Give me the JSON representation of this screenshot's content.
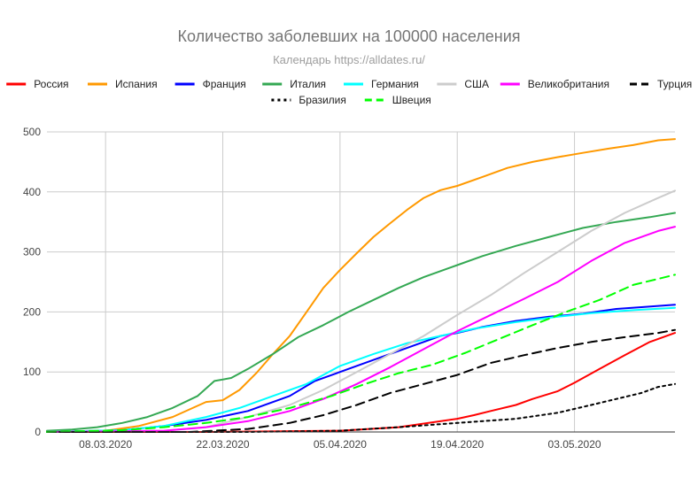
{
  "chart_data": {
    "type": "line",
    "title": "Количество заболевших на 100000 населения",
    "subtitle": "Календарь https://alldates.ru/",
    "xlabel": "",
    "ylabel": "",
    "x_start": "2020-03-01",
    "x_end": "2020-05-15",
    "x_ticks": [
      {
        "date": "2020-03-08",
        "label": "08.03.2020"
      },
      {
        "date": "2020-03-22",
        "label": "22.03.2020"
      },
      {
        "date": "2020-04-05",
        "label": "05.04.2020"
      },
      {
        "date": "2020-04-19",
        "label": "19.04.2020"
      },
      {
        "date": "2020-05-03",
        "label": "03.05.2020"
      }
    ],
    "ylim": [
      0,
      500
    ],
    "y_ticks": [
      0,
      100,
      200,
      300,
      400,
      500
    ],
    "grid": true,
    "legend_position": "top",
    "series": [
      {
        "name": "Россия",
        "color": "#ff0000",
        "dash": "solid",
        "points": [
          [
            "2020-03-01",
            0
          ],
          [
            "2020-03-20",
            0
          ],
          [
            "2020-04-05",
            2
          ],
          [
            "2020-04-12",
            8
          ],
          [
            "2020-04-19",
            22
          ],
          [
            "2020-04-21",
            28
          ],
          [
            "2020-04-23",
            35
          ],
          [
            "2020-04-26",
            45
          ],
          [
            "2020-04-28",
            55
          ],
          [
            "2020-05-01",
            68
          ],
          [
            "2020-05-03",
            82
          ],
          [
            "2020-05-06",
            105
          ],
          [
            "2020-05-09",
            128
          ],
          [
            "2020-05-12",
            150
          ],
          [
            "2020-05-15",
            165
          ]
        ]
      },
      {
        "name": "Испания",
        "color": "#ff9900",
        "dash": "solid",
        "points": [
          [
            "2020-03-01",
            0
          ],
          [
            "2020-03-08",
            2
          ],
          [
            "2020-03-12",
            10
          ],
          [
            "2020-03-16",
            25
          ],
          [
            "2020-03-20",
            50
          ],
          [
            "2020-03-22",
            53
          ],
          [
            "2020-03-24",
            70
          ],
          [
            "2020-03-26",
            98
          ],
          [
            "2020-03-28",
            130
          ],
          [
            "2020-03-30",
            160
          ],
          [
            "2020-04-01",
            200
          ],
          [
            "2020-04-03",
            240
          ],
          [
            "2020-04-05",
            270
          ],
          [
            "2020-04-07",
            298
          ],
          [
            "2020-04-09",
            325
          ],
          [
            "2020-04-11",
            348
          ],
          [
            "2020-04-13",
            370
          ],
          [
            "2020-04-15",
            390
          ],
          [
            "2020-04-17",
            403
          ],
          [
            "2020-04-19",
            410
          ],
          [
            "2020-04-22",
            425
          ],
          [
            "2020-04-25",
            440
          ],
          [
            "2020-04-28",
            450
          ],
          [
            "2020-05-01",
            458
          ],
          [
            "2020-05-04",
            465
          ],
          [
            "2020-05-07",
            472
          ],
          [
            "2020-05-10",
            478
          ],
          [
            "2020-05-13",
            486
          ],
          [
            "2020-05-15",
            488
          ]
        ]
      },
      {
        "name": "Франция",
        "color": "#0000ff",
        "dash": "solid",
        "points": [
          [
            "2020-03-01",
            0
          ],
          [
            "2020-03-10",
            3
          ],
          [
            "2020-03-15",
            10
          ],
          [
            "2020-03-20",
            20
          ],
          [
            "2020-03-25",
            35
          ],
          [
            "2020-03-30",
            60
          ],
          [
            "2020-04-02",
            85
          ],
          [
            "2020-04-05",
            100
          ],
          [
            "2020-04-09",
            120
          ],
          [
            "2020-04-13",
            140
          ],
          [
            "2020-04-17",
            160
          ],
          [
            "2020-04-19",
            165
          ],
          [
            "2020-04-22",
            175
          ],
          [
            "2020-04-26",
            185
          ],
          [
            "2020-04-30",
            192
          ],
          [
            "2020-05-04",
            197
          ],
          [
            "2020-05-08",
            205
          ],
          [
            "2020-05-11",
            208
          ],
          [
            "2020-05-15",
            212
          ]
        ]
      },
      {
        "name": "Италия",
        "color": "#34a853",
        "dash": "solid",
        "points": [
          [
            "2020-03-01",
            2
          ],
          [
            "2020-03-04",
            4
          ],
          [
            "2020-03-07",
            8
          ],
          [
            "2020-03-10",
            15
          ],
          [
            "2020-03-13",
            25
          ],
          [
            "2020-03-16",
            40
          ],
          [
            "2020-03-19",
            60
          ],
          [
            "2020-03-21",
            85
          ],
          [
            "2020-03-23",
            90
          ],
          [
            "2020-03-25",
            105
          ],
          [
            "2020-03-28",
            130
          ],
          [
            "2020-03-31",
            158
          ],
          [
            "2020-04-03",
            178
          ],
          [
            "2020-04-06",
            200
          ],
          [
            "2020-04-09",
            220
          ],
          [
            "2020-04-12",
            240
          ],
          [
            "2020-04-15",
            258
          ],
          [
            "2020-04-19",
            278
          ],
          [
            "2020-04-22",
            293
          ],
          [
            "2020-04-26",
            310
          ],
          [
            "2020-04-30",
            325
          ],
          [
            "2020-05-04",
            340
          ],
          [
            "2020-05-08",
            350
          ],
          [
            "2020-05-12",
            358
          ],
          [
            "2020-05-15",
            365
          ]
        ]
      },
      {
        "name": "Германия",
        "color": "#00ffff",
        "dash": "solid",
        "points": [
          [
            "2020-03-01",
            0
          ],
          [
            "2020-03-10",
            3
          ],
          [
            "2020-03-15",
            10
          ],
          [
            "2020-03-20",
            25
          ],
          [
            "2020-03-24",
            40
          ],
          [
            "2020-03-28",
            60
          ],
          [
            "2020-04-01",
            80
          ],
          [
            "2020-04-05",
            110
          ],
          [
            "2020-04-09",
            130
          ],
          [
            "2020-04-13",
            148
          ],
          [
            "2020-04-17",
            160
          ],
          [
            "2020-04-21",
            172
          ],
          [
            "2020-04-26",
            183
          ],
          [
            "2020-05-01",
            192
          ],
          [
            "2020-05-05",
            198
          ],
          [
            "2020-05-10",
            203
          ],
          [
            "2020-05-15",
            207
          ]
        ]
      },
      {
        "name": "США",
        "color": "#cccccc",
        "dash": "solid",
        "points": [
          [
            "2020-03-01",
            0
          ],
          [
            "2020-03-15",
            2
          ],
          [
            "2020-03-20",
            8
          ],
          [
            "2020-03-25",
            25
          ],
          [
            "2020-03-30",
            45
          ],
          [
            "2020-04-03",
            70
          ],
          [
            "2020-04-07",
            100
          ],
          [
            "2020-04-11",
            130
          ],
          [
            "2020-04-15",
            160
          ],
          [
            "2020-04-19",
            195
          ],
          [
            "2020-04-23",
            228
          ],
          [
            "2020-04-27",
            265
          ],
          [
            "2020-05-01",
            300
          ],
          [
            "2020-05-05",
            335
          ],
          [
            "2020-05-09",
            365
          ],
          [
            "2020-05-13",
            390
          ],
          [
            "2020-05-15",
            402
          ]
        ]
      },
      {
        "name": "Великобритания",
        "color": "#ff00ff",
        "dash": "solid",
        "points": [
          [
            "2020-03-01",
            0
          ],
          [
            "2020-03-15",
            2
          ],
          [
            "2020-03-20",
            8
          ],
          [
            "2020-03-25",
            18
          ],
          [
            "2020-03-30",
            35
          ],
          [
            "2020-04-03",
            55
          ],
          [
            "2020-04-07",
            80
          ],
          [
            "2020-04-11",
            108
          ],
          [
            "2020-04-15",
            138
          ],
          [
            "2020-04-19",
            168
          ],
          [
            "2020-04-23",
            195
          ],
          [
            "2020-04-27",
            222
          ],
          [
            "2020-05-01",
            250
          ],
          [
            "2020-05-05",
            285
          ],
          [
            "2020-05-09",
            315
          ],
          [
            "2020-05-13",
            335
          ],
          [
            "2020-05-15",
            342
          ]
        ]
      },
      {
        "name": "Турция",
        "color": "#000000",
        "dash": "dashed",
        "points": [
          [
            "2020-03-01",
            0
          ],
          [
            "2020-03-18",
            0
          ],
          [
            "2020-03-25",
            5
          ],
          [
            "2020-03-30",
            15
          ],
          [
            "2020-04-03",
            28
          ],
          [
            "2020-04-07",
            45
          ],
          [
            "2020-04-11",
            65
          ],
          [
            "2020-04-15",
            80
          ],
          [
            "2020-04-19",
            95
          ],
          [
            "2020-04-23",
            115
          ],
          [
            "2020-04-27",
            128
          ],
          [
            "2020-05-01",
            140
          ],
          [
            "2020-05-05",
            150
          ],
          [
            "2020-05-09",
            158
          ],
          [
            "2020-05-13",
            165
          ],
          [
            "2020-05-15",
            170
          ]
        ]
      },
      {
        "name": "Бразилия",
        "color": "#000000",
        "dash": "dotted",
        "points": [
          [
            "2020-03-01",
            0
          ],
          [
            "2020-03-25",
            0
          ],
          [
            "2020-04-05",
            2
          ],
          [
            "2020-04-12",
            8
          ],
          [
            "2020-04-19",
            15
          ],
          [
            "2020-04-26",
            22
          ],
          [
            "2020-05-01",
            32
          ],
          [
            "2020-05-05",
            45
          ],
          [
            "2020-05-08",
            55
          ],
          [
            "2020-05-11",
            65
          ],
          [
            "2020-05-13",
            75
          ],
          [
            "2020-05-15",
            80
          ]
        ]
      },
      {
        "name": "Швеция",
        "color": "#00ff00",
        "dash": "dashed",
        "points": [
          [
            "2020-03-01",
            0
          ],
          [
            "2020-03-10",
            3
          ],
          [
            "2020-03-15",
            8
          ],
          [
            "2020-03-20",
            15
          ],
          [
            "2020-03-25",
            25
          ],
          [
            "2020-03-30",
            40
          ],
          [
            "2020-04-04",
            60
          ],
          [
            "2020-04-08",
            80
          ],
          [
            "2020-04-12",
            98
          ],
          [
            "2020-04-16",
            112
          ],
          [
            "2020-04-20",
            132
          ],
          [
            "2020-04-24",
            155
          ],
          [
            "2020-04-28",
            178
          ],
          [
            "2020-05-02",
            200
          ],
          [
            "2020-05-06",
            220
          ],
          [
            "2020-05-10",
            245
          ],
          [
            "2020-05-15",
            262
          ]
        ]
      }
    ]
  }
}
